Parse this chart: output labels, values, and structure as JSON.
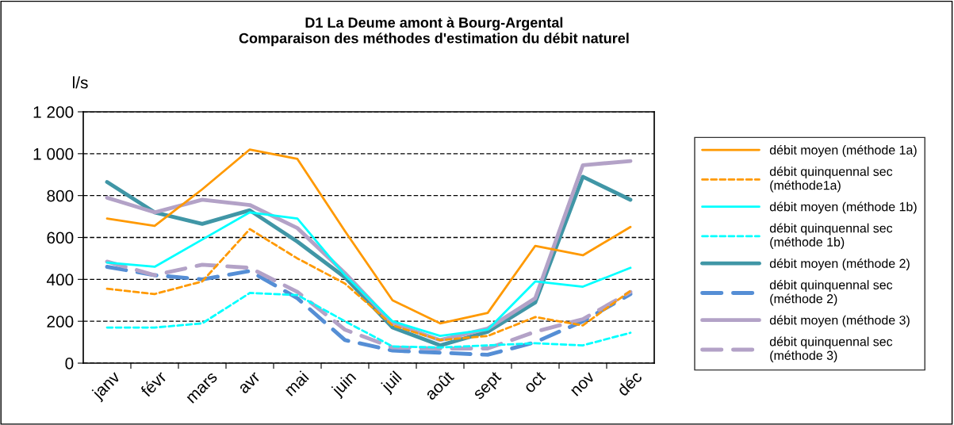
{
  "chart_data": {
    "type": "line",
    "title": "D1 La Deume amont à Bourg-Argental\nComparaison des méthodes d'estimation du débit naturel",
    "ylabel": "l/s",
    "categories": [
      "janv",
      "févr",
      "mars",
      "avr",
      "mai",
      "juin",
      "juil",
      "août",
      "sept",
      "oct",
      "nov",
      "déc"
    ],
    "ylim": [
      0,
      1200
    ],
    "yticks": [
      0,
      200,
      400,
      600,
      800,
      {
        "value": 1000,
        "label": "1 000"
      },
      {
        "value": 1200,
        "label": "1 200"
      }
    ],
    "grid": "y",
    "legend": "right",
    "marker": "none",
    "series": [
      {
        "name": "débit moyen (méthode 1a)",
        "color": "#ff9900",
        "line_style": "solid",
        "values": [
          690,
          655,
          830,
          1020,
          975,
          630,
          300,
          190,
          240,
          560,
          515,
          650
        ]
      },
      {
        "name": "débit quinquennal sec\n(méthode1a)",
        "color": "#ff9900",
        "line_style": "dashed",
        "values": [
          355,
          330,
          390,
          640,
          500,
          380,
          180,
          110,
          130,
          220,
          180,
          345
        ]
      },
      {
        "name": "débit moyen (méthode 1b)",
        "color": "#00ffff",
        "line_style": "solid",
        "values": [
          480,
          460,
          590,
          720,
          690,
          420,
          200,
          130,
          160,
          390,
          365,
          455
        ]
      },
      {
        "name": "débit quinquennal sec\n(méthode 1b)",
        "color": "#00ffff",
        "line_style": "dashed",
        "values": [
          170,
          170,
          190,
          335,
          325,
          200,
          80,
          75,
          85,
          95,
          85,
          145
        ]
      },
      {
        "name": "débit moyen (méthode 2)",
        "color": "#4096a6",
        "line_style": "solid",
        "values": [
          865,
          720,
          665,
          730,
          580,
          410,
          170,
          85,
          150,
          290,
          890,
          780
        ]
      },
      {
        "name": "débit quinquennal sec\n(méthode 2)",
        "color": "#558ed5",
        "line_style": "dashed",
        "values": [
          460,
          420,
          400,
          440,
          310,
          110,
          60,
          50,
          40,
          100,
          200,
          330
        ]
      },
      {
        "name": "débit moyen (méthode 3)",
        "color": "#b3a2c7",
        "line_style": "solid",
        "values": [
          790,
          720,
          780,
          755,
          645,
          430,
          190,
          110,
          165,
          310,
          945,
          965
        ]
      },
      {
        "name": "débit quinquennal sec\n(méthode 3)",
        "color": "#b3a2c7",
        "line_style": "dashed",
        "values": [
          485,
          420,
          470,
          455,
          340,
          160,
          75,
          70,
          70,
          150,
          210,
          340
        ]
      }
    ]
  }
}
